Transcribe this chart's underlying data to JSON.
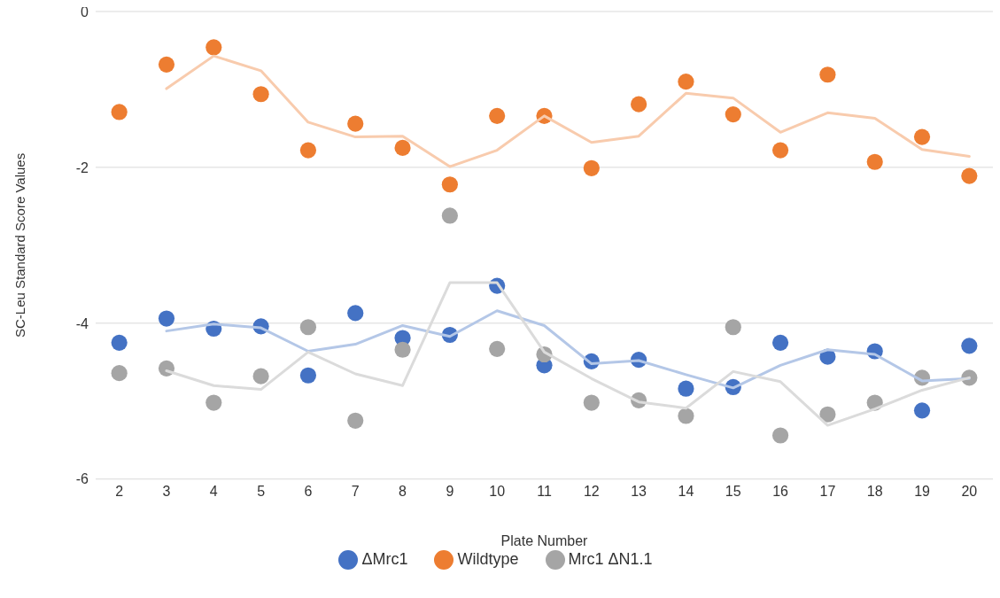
{
  "chart_data": {
    "type": "scatter",
    "xlabel": "Plate Number",
    "ylabel": "SC-Leu Standard Score Values",
    "categories": [
      "2",
      "3",
      "4",
      "5",
      "6",
      "7",
      "8",
      "9",
      "10",
      "11",
      "12",
      "13",
      "14",
      "15",
      "16",
      "17",
      "18",
      "19",
      "20"
    ],
    "ylim": [
      -6,
      0
    ],
    "yticks": [
      -6,
      -4,
      -2,
      0
    ],
    "grid": "y",
    "legend": "bottom",
    "marker": "circle",
    "series": [
      {
        "name": "ΔMrc1",
        "color": "#4472c4",
        "values": [
          -4.25,
          -3.94,
          -4.07,
          -4.04,
          -4.67,
          -3.87,
          -4.19,
          -4.15,
          -3.52,
          -4.54,
          -4.49,
          -4.47,
          -4.84,
          -4.82,
          -4.25,
          -4.43,
          -4.36,
          -5.12,
          -4.29
        ]
      },
      {
        "name": "Wildtype",
        "color": "#ed7d31",
        "values": [
          -1.29,
          -0.68,
          -0.46,
          -1.06,
          -1.78,
          -1.44,
          -1.75,
          -2.22,
          -1.34,
          -1.34,
          -2.01,
          -1.19,
          -0.9,
          -1.32,
          -1.78,
          -0.81,
          -1.93,
          -1.61,
          -2.11
        ]
      },
      {
        "name": "Mrc1 ΔN1.1",
        "color": "#a5a5a5",
        "values": [
          -4.64,
          -4.58,
          -5.02,
          -4.68,
          -4.05,
          -5.25,
          -4.34,
          -2.62,
          -4.33,
          -4.4,
          -5.02,
          -4.99,
          -5.19,
          -4.05,
          -5.44,
          -5.17,
          -5.02,
          -4.7,
          -4.7
        ]
      },
      {
        "type": "line",
        "color": "#b4c7e7",
        "line_style": "solid",
        "marker": "none",
        "values": [
          null,
          -4.1,
          -4.01,
          -4.06,
          -4.36,
          -4.27,
          -4.03,
          -4.17,
          -3.84,
          -4.03,
          -4.52,
          -4.48,
          -4.66,
          -4.83,
          -4.54,
          -4.34,
          -4.4,
          -4.74,
          -4.71
        ]
      },
      {
        "type": "line",
        "color": "#f8cbad",
        "line_style": "solid",
        "marker": "none",
        "values": [
          null,
          -0.99,
          -0.57,
          -0.76,
          -1.42,
          -1.61,
          -1.6,
          -1.99,
          -1.78,
          -1.34,
          -1.68,
          -1.6,
          -1.05,
          -1.11,
          -1.55,
          -1.3,
          -1.37,
          -1.77,
          -1.86
        ]
      },
      {
        "type": "line",
        "color": "#dbdbdb",
        "line_style": "solid",
        "marker": "none",
        "values": [
          null,
          -4.61,
          -4.8,
          -4.85,
          -4.37,
          -4.65,
          -4.8,
          -3.48,
          -3.48,
          -4.37,
          -4.71,
          -5.01,
          -5.09,
          -4.62,
          -4.75,
          -5.31,
          -5.1,
          -4.86,
          -4.7
        ]
      }
    ]
  }
}
